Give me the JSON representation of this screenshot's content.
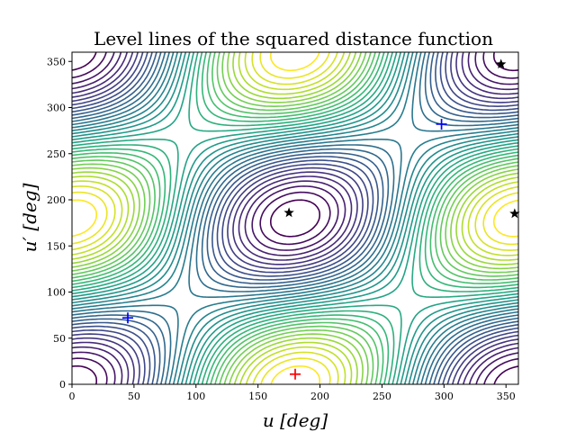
{
  "chart_data": {
    "type": "contour",
    "title": "Level lines of the squared distance function",
    "xlabel": "u [deg]",
    "ylabel": "u′ [deg]",
    "xlim": [
      0,
      360
    ],
    "ylim": [
      0,
      360
    ],
    "x_ticks": [
      "0",
      "50",
      "100",
      "150",
      "200",
      "250",
      "300",
      "350"
    ],
    "y_ticks": [
      "0",
      "50",
      "100",
      "150",
      "200",
      "250",
      "300",
      "350"
    ],
    "colormap": "viridis",
    "grid": false,
    "minima": [
      {
        "u": 180,
        "u_prime": 11,
        "color": "#ff0000",
        "marker": "plus"
      },
      {
        "u": 45,
        "u_prime": 72,
        "color": "#0000ff",
        "marker": "plus"
      },
      {
        "u": 298,
        "u_prime": 282,
        "color": "#0000ff",
        "marker": "plus"
      }
    ],
    "saddles": [
      {
        "u": 175,
        "u_prime": 186,
        "color": "#000000",
        "marker": "star"
      },
      {
        "u": 346,
        "u_prime": 347,
        "color": "#000000",
        "marker": "star"
      },
      {
        "u": 357,
        "u_prime": 185,
        "color": "#000000",
        "marker": "star"
      }
    ]
  }
}
